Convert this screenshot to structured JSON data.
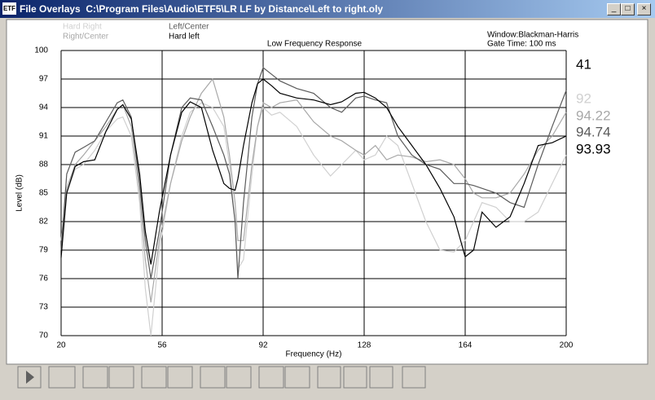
{
  "window": {
    "title": "File Overlays  C:\\Program Files\\Audio\\ETF5\\LR LF by Distance\\Left to right.oly",
    "icon": "ETF"
  },
  "info": [
    "Window:Blackman-Harris",
    "Gate Time: 100 ms"
  ],
  "readouts": [
    "41",
    "92",
    "94.22",
    "94.74",
    "93.93"
  ],
  "chart_data": {
    "type": "line",
    "title": "Low Frequency Response",
    "x_label": "Frequency (Hz)",
    "y_label": "Level (dB)",
    "x": [
      20,
      22,
      25,
      28,
      32,
      36,
      40,
      42,
      45,
      48,
      50,
      52,
      55,
      59,
      63,
      66,
      70,
      74,
      78,
      80,
      82,
      83,
      85,
      88,
      90,
      92,
      95,
      98,
      104,
      110,
      116,
      120,
      125,
      128,
      132,
      136,
      140,
      145,
      150,
      155,
      160,
      164,
      167,
      170,
      175,
      180,
      185,
      190,
      195,
      200
    ],
    "series": [
      {
        "name": "Hard Right",
        "color": "#d0d0d0",
        "values": [
          80,
          85,
          87.5,
          88,
          89.5,
          91.5,
          92.8,
          93,
          91,
          84,
          75,
          70,
          79,
          86,
          91,
          93.5,
          94.5,
          94,
          92,
          88,
          82,
          77,
          78,
          87,
          92,
          94,
          93.2,
          93.5,
          92,
          89,
          86.8,
          88,
          89.5,
          88.5,
          89,
          91,
          90,
          86,
          82,
          79,
          78.8,
          80,
          82,
          84,
          83.5,
          82,
          82,
          83,
          86,
          89
        ]
      },
      {
        "name": "Right/Center",
        "color": "#a8a8a8",
        "values": [
          80,
          85.5,
          88,
          89,
          90.5,
          92,
          93.8,
          94.3,
          92,
          85,
          78,
          73.5,
          80,
          86,
          90.5,
          93,
          95.5,
          97,
          93,
          89,
          84,
          80,
          80,
          88,
          92,
          94.5,
          94,
          94.5,
          94.8,
          92.5,
          91,
          90.5,
          89.5,
          89,
          90,
          88.5,
          89,
          88.8,
          88.3,
          88.5,
          88,
          86.5,
          85,
          84.5,
          84.5,
          85,
          87,
          89.5,
          91,
          93.5
        ]
      },
      {
        "name": "Left/Center",
        "color": "#5a5a5a",
        "values": [
          79,
          87,
          89.3,
          89.8,
          90.5,
          92.5,
          94.5,
          94.8,
          93,
          86,
          80,
          76,
          81,
          89,
          94,
          95,
          94.8,
          92,
          89,
          87,
          82,
          76,
          84,
          93,
          96.5,
          98.2,
          97.5,
          96.8,
          96,
          95.5,
          94,
          93.5,
          95,
          95.2,
          94.8,
          94.5,
          91,
          89,
          88,
          87.5,
          86,
          86,
          85.8,
          85.5,
          85,
          84,
          83.5,
          88,
          92,
          95.8
        ]
      },
      {
        "name": "Hard left",
        "color": "#000000",
        "values": [
          78.2,
          85,
          87.8,
          88.3,
          88.5,
          91.5,
          93.8,
          94.3,
          92.8,
          87,
          81,
          77.5,
          83,
          89,
          93.5,
          94.6,
          94,
          89.5,
          86,
          85.5,
          85.3,
          86.5,
          90,
          94.5,
          96.5,
          97,
          96.3,
          95.5,
          95,
          94.8,
          94.3,
          94.6,
          95.5,
          95.6,
          95,
          94,
          92,
          90,
          88,
          85.5,
          82.5,
          78.3,
          79,
          83,
          81.4,
          82.5,
          86,
          90,
          90.3,
          91
        ]
      }
    ],
    "xlim": [
      20,
      200
    ],
    "xticks": [
      20,
      56,
      92,
      128,
      164,
      200
    ],
    "ylim": [
      70,
      100
    ],
    "yticks": [
      70,
      73,
      76,
      79,
      82,
      85,
      88,
      91,
      94,
      97,
      100
    ],
    "grid": true
  }
}
